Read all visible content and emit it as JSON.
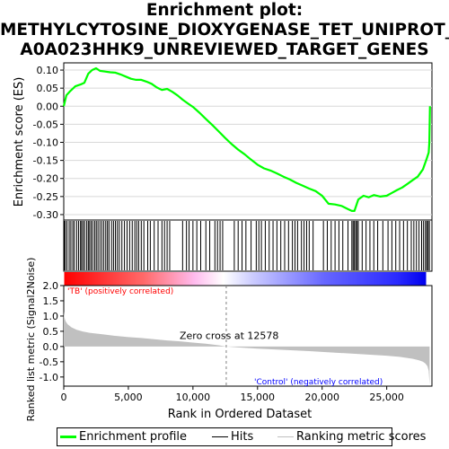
{
  "title_lines": [
    "Enrichment plot:",
    "METHYLCYTOSINE_DIOXYGENASE_TET_UNIPROT_",
    "A0A023HHK9_UNREVIEWED_TARGET_GENES"
  ],
  "legend": {
    "enrichment": "Enrichment profile",
    "hits": "Hits",
    "ranking": "Ranking metric scores"
  },
  "colors": {
    "enrichment": "#00ff00",
    "hits": "#000000",
    "ranking": "#c0c0c0",
    "positive": "#ff0000",
    "negative": "#0000ff",
    "zero_line": "#808080"
  },
  "chart_data": [
    {
      "type": "line",
      "ylabel": "Enrichment score (ES)",
      "xlim": [
        0,
        28500
      ],
      "ylim": [
        -0.315,
        0.12
      ],
      "y_ticks": [
        -0.3,
        -0.25,
        -0.2,
        -0.15,
        -0.1,
        -0.05,
        0.0,
        0.05,
        0.1
      ],
      "grid": true,
      "series": [
        {
          "x": [
            0,
            200,
            500,
            900,
            1300,
            1600,
            1900,
            2200,
            2500,
            2800,
            3200,
            3600,
            4000,
            4400,
            4800,
            5200,
            5600,
            6000,
            6400,
            6800,
            7200,
            7600,
            8000,
            8400,
            8800,
            9200,
            9600,
            10000,
            10500,
            11000,
            11500,
            12000,
            12500,
            13000,
            13500,
            14000,
            14500,
            15000,
            15500,
            16000,
            16500,
            17000,
            17500,
            18000,
            18500,
            19000,
            19500,
            20000,
            20500,
            21000,
            21500,
            22000,
            22300,
            22500,
            22800,
            23200,
            23600,
            24000,
            24500,
            25000,
            25400,
            25800,
            26200,
            26600,
            27000,
            27400,
            27800,
            28100,
            28250,
            28300,
            28350
          ],
          "y": [
            0.0,
            0.03,
            0.042,
            0.055,
            0.06,
            0.065,
            0.09,
            0.1,
            0.105,
            0.098,
            0.096,
            0.094,
            0.093,
            0.088,
            0.082,
            0.076,
            0.073,
            0.073,
            0.068,
            0.062,
            0.052,
            0.045,
            0.048,
            0.04,
            0.03,
            0.018,
            0.008,
            -0.002,
            -0.018,
            -0.035,
            -0.052,
            -0.07,
            -0.088,
            -0.105,
            -0.12,
            -0.133,
            -0.148,
            -0.162,
            -0.172,
            -0.178,
            -0.186,
            -0.195,
            -0.203,
            -0.212,
            -0.22,
            -0.228,
            -0.235,
            -0.248,
            -0.27,
            -0.272,
            -0.276,
            -0.285,
            -0.29,
            -0.29,
            -0.258,
            -0.248,
            -0.252,
            -0.246,
            -0.25,
            -0.248,
            -0.24,
            -0.232,
            -0.225,
            -0.215,
            -0.205,
            -0.195,
            -0.175,
            -0.145,
            -0.128,
            -0.1,
            0.0
          ]
        }
      ]
    },
    {
      "type": "bar",
      "xlabel": "Rank in Ordered Dataset",
      "ylabel": "Ranked list metric (Signal2Noise)",
      "xlim": [
        0,
        28500
      ],
      "ylim": [
        -1.3,
        2.0
      ],
      "x_ticks": [
        0,
        5000,
        10000,
        15000,
        20000,
        25000
      ],
      "x_tick_labels": [
        "0",
        "5,000",
        "10,000",
        "15,000",
        "20,000",
        "25,000"
      ],
      "y_ticks": [
        -1.0,
        -0.5,
        0.0,
        0.5,
        1.0,
        1.5,
        2.0
      ],
      "series": [
        {
          "x": [
            0,
            50,
            150,
            300,
            600,
            1000,
            1500,
            2000,
            3000,
            4000,
            5000,
            6000,
            7000,
            8000,
            9000,
            10000,
            11000,
            12000,
            12578,
            13500,
            15000,
            17000,
            19000,
            21000,
            23000,
            25000,
            26000,
            27000,
            27500,
            27800,
            28000,
            28150,
            28250,
            28320
          ],
          "y": [
            1.15,
            0.95,
            0.82,
            0.73,
            0.63,
            0.55,
            0.49,
            0.45,
            0.4,
            0.35,
            0.31,
            0.28,
            0.24,
            0.2,
            0.17,
            0.13,
            0.09,
            0.04,
            0.0,
            -0.03,
            -0.07,
            -0.11,
            -0.15,
            -0.2,
            -0.25,
            -0.3,
            -0.34,
            -0.4,
            -0.45,
            -0.5,
            -0.56,
            -0.65,
            -0.8,
            -1.25
          ]
        }
      ],
      "annotations": {
        "zero_cross": "Zero cross at 12578",
        "positive_label": "'TB' (positively correlated)",
        "negative_label": "'Control' (negatively correlated)"
      }
    }
  ],
  "hits": [
    40,
    120,
    250,
    420,
    550,
    700,
    820,
    1000,
    1150,
    1300,
    1380,
    1500,
    1620,
    1780,
    1900,
    2000,
    2120,
    2250,
    2400,
    2520,
    2650,
    2800,
    2950,
    3100,
    3250,
    3380,
    3500,
    3700,
    3850,
    4000,
    4150,
    4300,
    4500,
    4700,
    4900,
    5100,
    5300,
    5500,
    5650,
    5800,
    6000,
    6200,
    6500,
    6700,
    7000,
    7300,
    7600,
    7800,
    8000,
    8200,
    9200,
    9500,
    9700,
    10000,
    10300,
    10600,
    11000,
    11300,
    11700,
    11900,
    12100,
    12300,
    13200,
    13500,
    13800,
    14100,
    14500,
    14900,
    15100,
    15300,
    15600,
    15900,
    16200,
    16500,
    16800,
    17100,
    17400,
    17700,
    17900,
    18100,
    18400,
    18600,
    18800,
    19000,
    19300,
    20100,
    20400,
    20700,
    21000,
    21300,
    21600,
    22000,
    22300,
    22400,
    22500,
    22600,
    22700,
    22800,
    23100,
    23400,
    23700,
    24000,
    24300,
    24700,
    25100,
    25400,
    25700,
    26000,
    26300,
    26600,
    26900,
    27100,
    27300,
    27500,
    27700,
    27850,
    28000,
    28100,
    28200,
    28300
  ]
}
